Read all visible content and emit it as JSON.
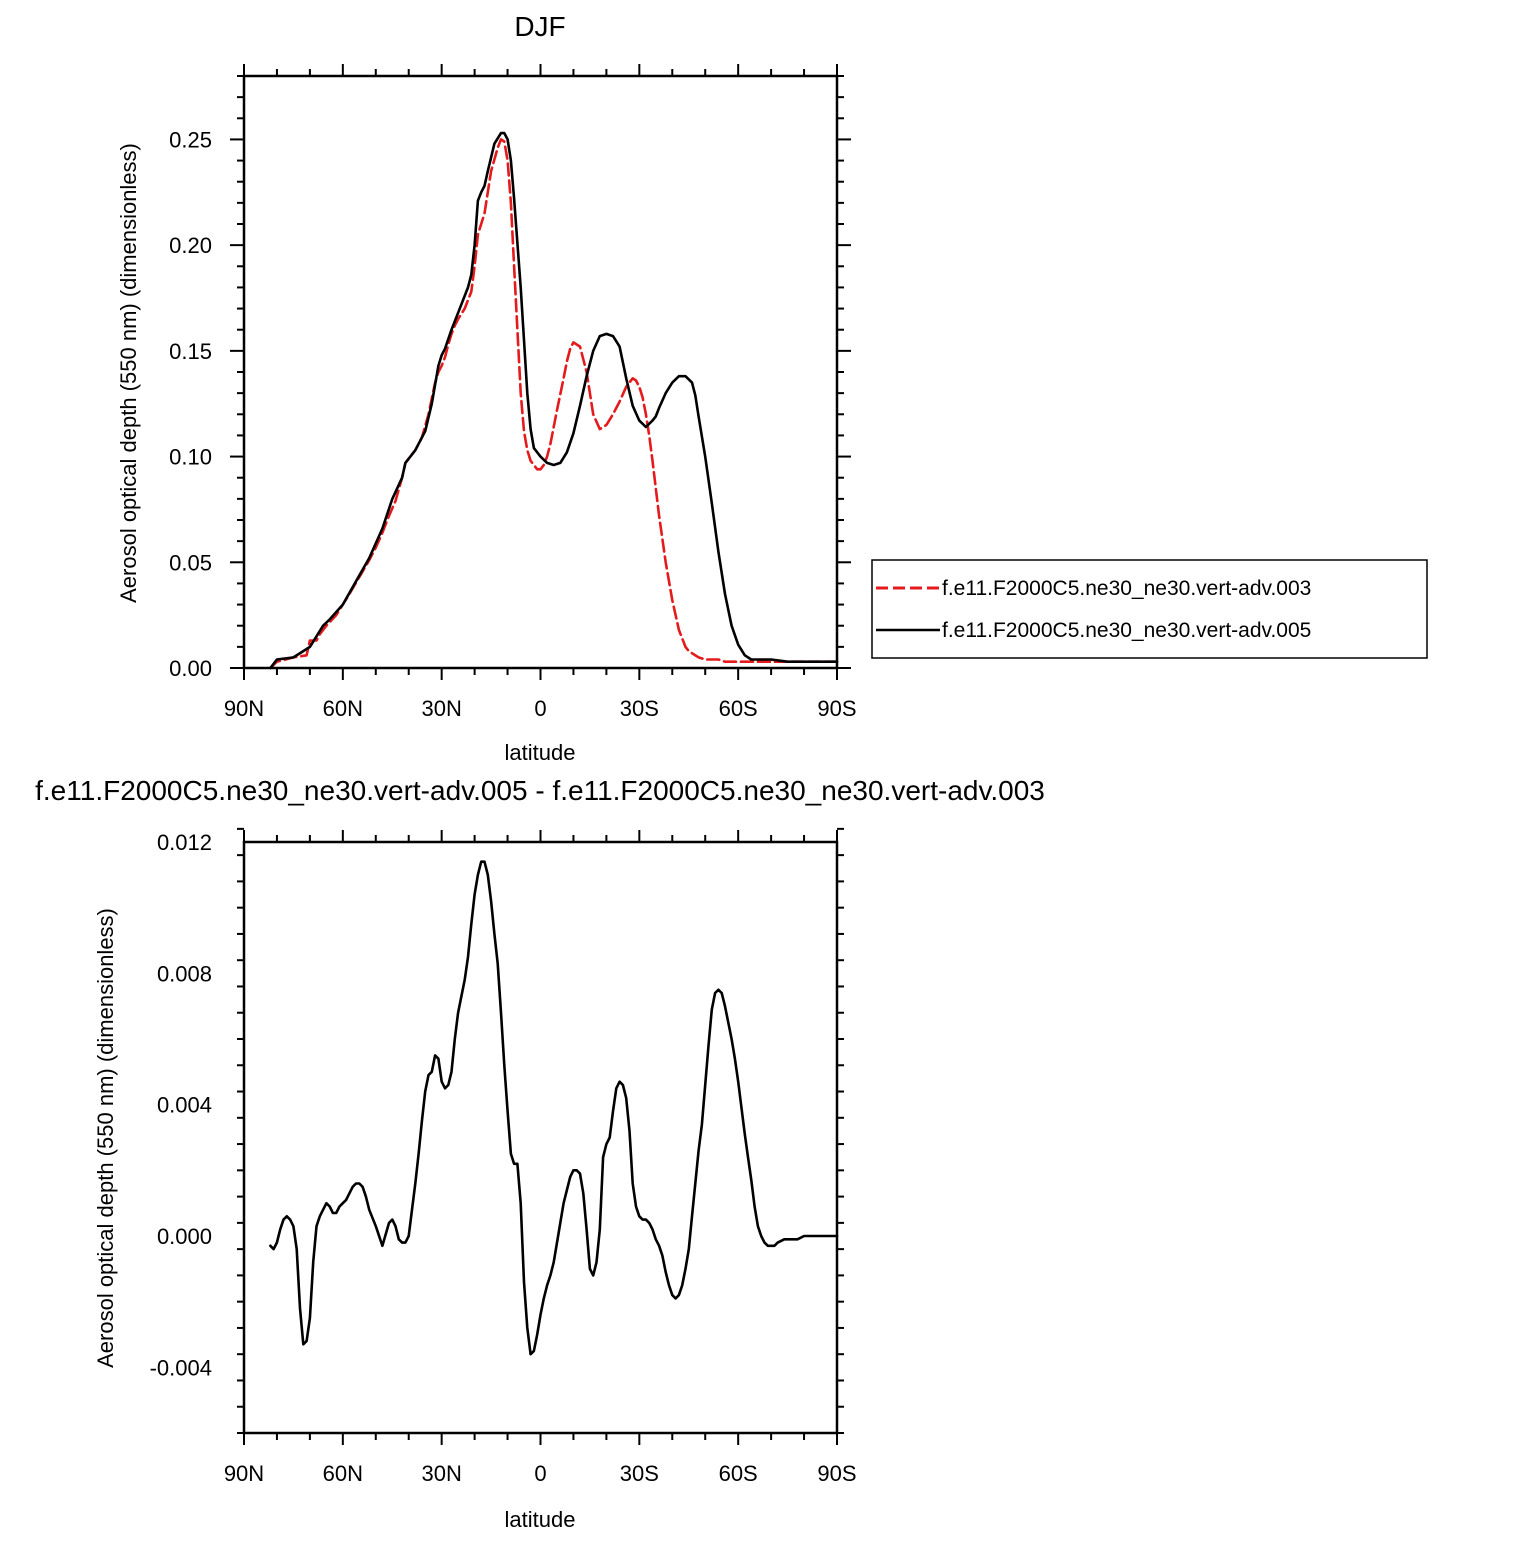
{
  "chart_data": [
    {
      "type": "line",
      "title": "DJF",
      "xlabel": "latitude",
      "ylabel": "Aerosol optical depth (550 nm) (dimensionless)",
      "xlim": [
        90,
        -90
      ],
      "ylim": [
        0,
        0.28
      ],
      "x_ticks": [
        90,
        60,
        30,
        0,
        -30,
        -60,
        -90
      ],
      "x_tick_labels": [
        "90N",
        "60N",
        "30N",
        "0",
        "30S",
        "60S",
        "90S"
      ],
      "y_ticks": [
        0,
        0.05,
        0.1,
        0.15,
        0.2,
        0.25
      ],
      "y_tick_labels": [
        "0.00",
        "0.05",
        "0.10",
        "0.15",
        "0.20",
        "0.25"
      ],
      "legend_position": "right",
      "series": [
        {
          "name": "f.e11.F2000C5.ne30_ne30.vert-adv.003",
          "color": "#e41a1c",
          "dash": "dashed",
          "x": [
            82,
            80,
            75,
            71,
            70,
            68,
            67,
            65,
            62,
            60,
            58,
            55,
            52,
            50,
            48,
            46,
            44,
            42,
            41,
            40,
            38,
            36,
            34,
            32,
            31,
            30,
            29,
            28,
            27,
            26,
            25,
            23,
            21,
            20,
            19,
            18,
            17,
            15,
            13,
            12,
            11,
            10,
            9,
            8,
            7,
            6,
            5,
            4,
            3,
            2,
            1,
            0,
            -1,
            -2,
            -3,
            -4,
            -5,
            -7,
            -8,
            -9,
            -10,
            -12,
            -14,
            -16,
            -18,
            -20,
            -22,
            -23,
            -24,
            -26,
            -28,
            -29,
            -30,
            -31,
            -32,
            -33,
            -34,
            -35,
            -36,
            -38,
            -40,
            -42,
            -44,
            -45,
            -46,
            -47,
            -48,
            -50,
            -52,
            -54,
            -56,
            -58,
            -60,
            -62,
            -64,
            -66,
            -68,
            -70,
            -72,
            -75,
            -80,
            -85,
            -90
          ],
          "y": [
            0.0,
            0.003,
            0.005,
            0.006,
            0.013,
            0.013,
            0.016,
            0.02,
            0.025,
            0.03,
            0.035,
            0.043,
            0.051,
            0.057,
            0.064,
            0.072,
            0.079,
            0.09,
            0.097,
            0.099,
            0.103,
            0.109,
            0.12,
            0.135,
            0.14,
            0.143,
            0.147,
            0.153,
            0.158,
            0.162,
            0.165,
            0.17,
            0.178,
            0.19,
            0.205,
            0.21,
            0.215,
            0.235,
            0.246,
            0.25,
            0.249,
            0.24,
            0.22,
            0.19,
            0.16,
            0.13,
            0.112,
            0.103,
            0.098,
            0.096,
            0.094,
            0.094,
            0.096,
            0.1,
            0.106,
            0.114,
            0.122,
            0.137,
            0.145,
            0.151,
            0.154,
            0.152,
            0.14,
            0.12,
            0.113,
            0.115,
            0.12,
            0.123,
            0.126,
            0.133,
            0.137,
            0.136,
            0.133,
            0.128,
            0.12,
            0.11,
            0.098,
            0.085,
            0.072,
            0.05,
            0.032,
            0.018,
            0.01,
            0.008,
            0.007,
            0.006,
            0.005,
            0.004,
            0.004,
            0.004,
            0.003,
            0.003,
            0.003,
            0.003,
            0.003,
            0.003,
            0.003,
            0.003,
            0.003,
            0.003,
            0.003,
            0.003,
            0.003
          ]
        },
        {
          "name": "f.e11.F2000C5.ne30_ne30.vert-adv.005",
          "color": "#000000",
          "dash": "solid",
          "x": [
            82,
            80,
            75,
            72,
            70,
            68,
            66,
            64,
            60,
            56,
            52,
            48,
            45,
            42,
            41,
            38,
            35,
            33,
            31,
            30,
            29,
            27,
            25,
            24,
            22,
            21,
            20,
            19,
            18,
            17,
            16,
            14,
            12,
            11,
            10,
            9,
            8,
            6,
            4,
            3,
            2,
            0,
            -2,
            -4,
            -6,
            -8,
            -10,
            -12,
            -14,
            -16,
            -18,
            -20,
            -22,
            -24,
            -26,
            -28,
            -30,
            -32,
            -34,
            -35,
            -36,
            -38,
            -40,
            -42,
            -44,
            -46,
            -47,
            -48,
            -50,
            -52,
            -54,
            -56,
            -58,
            -60,
            -62,
            -64,
            -66,
            -68,
            -70,
            -75,
            -80,
            -85,
            -90
          ],
          "y": [
            0.0,
            0.004,
            0.005,
            0.008,
            0.01,
            0.015,
            0.02,
            0.023,
            0.03,
            0.041,
            0.052,
            0.066,
            0.08,
            0.09,
            0.097,
            0.103,
            0.112,
            0.125,
            0.143,
            0.148,
            0.151,
            0.16,
            0.168,
            0.172,
            0.18,
            0.186,
            0.2,
            0.221,
            0.225,
            0.228,
            0.235,
            0.248,
            0.253,
            0.253,
            0.25,
            0.24,
            0.222,
            0.18,
            0.13,
            0.113,
            0.104,
            0.1,
            0.097,
            0.096,
            0.097,
            0.102,
            0.111,
            0.124,
            0.138,
            0.15,
            0.157,
            0.158,
            0.157,
            0.152,
            0.137,
            0.124,
            0.117,
            0.114,
            0.117,
            0.119,
            0.123,
            0.13,
            0.135,
            0.138,
            0.138,
            0.135,
            0.129,
            0.119,
            0.1,
            0.078,
            0.055,
            0.035,
            0.02,
            0.011,
            0.006,
            0.004,
            0.004,
            0.004,
            0.004,
            0.003,
            0.003,
            0.003,
            0.003
          ]
        }
      ]
    },
    {
      "type": "line",
      "title": "f.e11.F2000C5.ne30_ne30.vert-adv.005 - f.e11.F2000C5.ne30_ne30.vert-adv.003",
      "xlabel": "latitude",
      "ylabel": "Aerosol optical depth (550 nm) (dimensionless)",
      "xlim": [
        90,
        -90
      ],
      "ylim": [
        -0.006,
        0.012
      ],
      "x_ticks": [
        90,
        60,
        30,
        0,
        -30,
        -60,
        -90
      ],
      "x_tick_labels": [
        "90N",
        "60N",
        "30N",
        "0",
        "30S",
        "60S",
        "90S"
      ],
      "y_ticks": [
        -0.004,
        0,
        0.004,
        0.008,
        0.012
      ],
      "y_tick_labels": [
        "-0.004",
        "0.000",
        "0.004",
        "0.008",
        "0.012"
      ],
      "series": [
        {
          "color": "#000000",
          "dash": "solid",
          "x": [
            82,
            81,
            80,
            79,
            78,
            77,
            76,
            75,
            74,
            73,
            72,
            71,
            70,
            69,
            68,
            67,
            66,
            65,
            64,
            63,
            62,
            61,
            60,
            59,
            58,
            57,
            56,
            55,
            54,
            53,
            52,
            50,
            48,
            46,
            45,
            44,
            43,
            42,
            41,
            40,
            39,
            38,
            37,
            36,
            35,
            34,
            33,
            32,
            31,
            30,
            29,
            28,
            27,
            26,
            25,
            24,
            23,
            22,
            21,
            20,
            19,
            18,
            17,
            16,
            15,
            14,
            13,
            12,
            11,
            10,
            9,
            8,
            7,
            6,
            5,
            4,
            3,
            2,
            1,
            0,
            -1,
            -2,
            -3,
            -4,
            -5,
            -6,
            -7,
            -8,
            -9,
            -10,
            -11,
            -12,
            -13,
            -14,
            -15,
            -16,
            -17,
            -18,
            -19,
            -20,
            -21,
            -22,
            -23,
            -24,
            -25,
            -26,
            -27,
            -28,
            -29,
            -30,
            -31,
            -32,
            -33,
            -34,
            -35,
            -36,
            -37,
            -38,
            -39,
            -40,
            -41,
            -42,
            -43,
            -44,
            -45,
            -46,
            -47,
            -48,
            -49,
            -50,
            -51,
            -52,
            -53,
            -54,
            -55,
            -56,
            -57,
            -58,
            -59,
            -60,
            -61,
            -62,
            -63,
            -64,
            -65,
            -66,
            -67,
            -68,
            -69,
            -70,
            -71,
            -72,
            -74,
            -76,
            -78,
            -80,
            -82,
            -84,
            -86,
            -88,
            -90
          ],
          "y": [
            -0.0003,
            -0.0004,
            -0.0002,
            0.0002,
            0.0005,
            0.0006,
            0.0005,
            0.0003,
            -0.0004,
            -0.0022,
            -0.0033,
            -0.0032,
            -0.0025,
            -0.0008,
            0.0003,
            0.0006,
            0.0008,
            0.001,
            0.0009,
            0.0007,
            0.0007,
            0.0009,
            0.001,
            0.0011,
            0.0013,
            0.0015,
            0.0016,
            0.0016,
            0.0015,
            0.0012,
            0.0008,
            0.0003,
            -0.0003,
            0.0004,
            0.0005,
            0.0003,
            -0.0001,
            -0.0002,
            -0.0002,
            0.0,
            0.0008,
            0.0016,
            0.0025,
            0.0035,
            0.0044,
            0.0049,
            0.005,
            0.0055,
            0.0054,
            0.0047,
            0.0045,
            0.0046,
            0.005,
            0.006,
            0.0068,
            0.0073,
            0.0078,
            0.0085,
            0.0095,
            0.0104,
            0.011,
            0.0114,
            0.0114,
            0.011,
            0.0102,
            0.0092,
            0.0083,
            0.0068,
            0.0052,
            0.0038,
            0.0025,
            0.0022,
            0.0022,
            0.001,
            -0.0014,
            -0.0028,
            -0.0036,
            -0.0035,
            -0.003,
            -0.0024,
            -0.0019,
            -0.0015,
            -0.0012,
            -0.0008,
            -0.0002,
            0.0004,
            0.001,
            0.0014,
            0.0018,
            0.002,
            0.002,
            0.0019,
            0.0013,
            0.0002,
            -0.001,
            -0.0012,
            -0.0008,
            0.0002,
            0.0024,
            0.0028,
            0.003,
            0.0038,
            0.0045,
            0.0047,
            0.0046,
            0.0042,
            0.0032,
            0.0016,
            0.0009,
            0.0006,
            0.0005,
            0.0005,
            0.0004,
            0.0002,
            -0.0001,
            -0.0003,
            -0.0006,
            -0.0011,
            -0.0015,
            -0.0018,
            -0.0019,
            -0.0018,
            -0.0015,
            -0.001,
            -0.0004,
            0.0006,
            0.0016,
            0.0026,
            0.0034,
            0.0046,
            0.0058,
            0.0069,
            0.0074,
            0.0075,
            0.0074,
            0.007,
            0.0065,
            0.006,
            0.0054,
            0.0047,
            0.0039,
            0.0031,
            0.0024,
            0.0017,
            0.0009,
            0.0003,
            0.0,
            -0.0002,
            -0.0003,
            -0.0003,
            -0.0003,
            -0.0002,
            -0.0001,
            -0.0001,
            -0.0001,
            0.0,
            0.0,
            0.0,
            0.0,
            0.0,
            0.0
          ]
        }
      ]
    }
  ]
}
